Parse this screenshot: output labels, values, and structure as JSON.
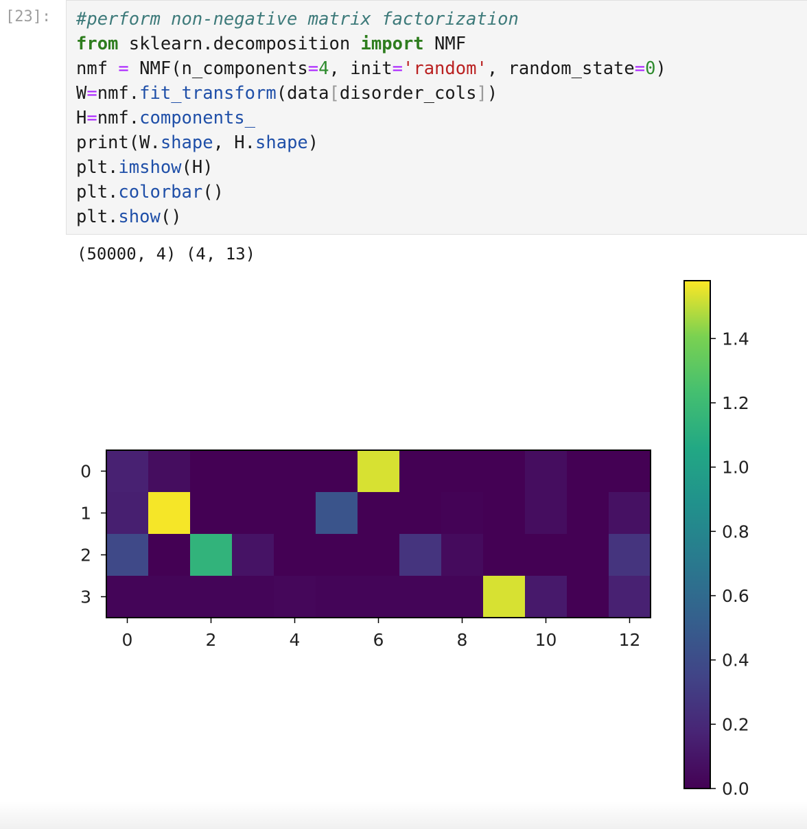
{
  "cell": {
    "prompt": "[23]:",
    "code_lines": [
      [
        {
          "t": "#perform non-negative matrix factorization",
          "c": "comment"
        }
      ],
      [
        {
          "t": "from",
          "c": "kw"
        },
        {
          "t": " sklearn.decomposition ",
          "c": ""
        },
        {
          "t": "import",
          "c": "kw"
        },
        {
          "t": " NMF",
          "c": ""
        }
      ],
      [
        {
          "t": "nmf ",
          "c": ""
        },
        {
          "t": "=",
          "c": "op"
        },
        {
          "t": " NMF(n_components",
          "c": ""
        },
        {
          "t": "=",
          "c": "op"
        },
        {
          "t": "4",
          "c": "num"
        },
        {
          "t": ", init",
          "c": ""
        },
        {
          "t": "=",
          "c": "op"
        },
        {
          "t": "'random'",
          "c": "str"
        },
        {
          "t": ", random_state",
          "c": ""
        },
        {
          "t": "=",
          "c": "op"
        },
        {
          "t": "0",
          "c": "num"
        },
        {
          "t": ")",
          "c": ""
        }
      ],
      [
        {
          "t": "W",
          "c": ""
        },
        {
          "t": "=",
          "c": "op"
        },
        {
          "t": "nmf.",
          "c": ""
        },
        {
          "t": "fit_transform",
          "c": "attr"
        },
        {
          "t": "(data",
          "c": ""
        },
        {
          "t": "[",
          "c": "brk"
        },
        {
          "t": "disorder_cols",
          "c": ""
        },
        {
          "t": "]",
          "c": "brk"
        },
        {
          "t": ")",
          "c": ""
        }
      ],
      [
        {
          "t": "H",
          "c": ""
        },
        {
          "t": "=",
          "c": "op"
        },
        {
          "t": "nmf.",
          "c": ""
        },
        {
          "t": "components_",
          "c": "attr"
        }
      ],
      [
        {
          "t": "print(W.",
          "c": ""
        },
        {
          "t": "shape",
          "c": "attr"
        },
        {
          "t": ", H.",
          "c": ""
        },
        {
          "t": "shape",
          "c": "attr"
        },
        {
          "t": ")",
          "c": ""
        }
      ],
      [
        {
          "t": "plt.",
          "c": ""
        },
        {
          "t": "imshow",
          "c": "attr"
        },
        {
          "t": "(H)",
          "c": ""
        }
      ],
      [
        {
          "t": "plt.",
          "c": ""
        },
        {
          "t": "colorbar",
          "c": "attr"
        },
        {
          "t": "()",
          "c": ""
        }
      ],
      [
        {
          "t": "plt.",
          "c": ""
        },
        {
          "t": "show",
          "c": "attr"
        },
        {
          "t": "()",
          "c": ""
        }
      ]
    ],
    "output": "(50000, 4) (4, 13)"
  },
  "chart_data": {
    "type": "heatmap",
    "colormap": "viridis",
    "rows": [
      0,
      1,
      2,
      3
    ],
    "cols": [
      0,
      1,
      2,
      3,
      4,
      5,
      6,
      7,
      8,
      9,
      10,
      11,
      12
    ],
    "values": [
      [
        0.16,
        0.06,
        0.0,
        0.0,
        0.0,
        0.0,
        1.53,
        0.0,
        0.0,
        0.0,
        0.06,
        0.0,
        0.0
      ],
      [
        0.15,
        1.57,
        0.0,
        0.0,
        0.0,
        0.45,
        0.0,
        0.0,
        0.01,
        0.0,
        0.06,
        0.0,
        0.08
      ],
      [
        0.38,
        0.0,
        1.14,
        0.09,
        0.0,
        0.0,
        0.0,
        0.26,
        0.05,
        0.0,
        0.0,
        0.0,
        0.26
      ],
      [
        0.02,
        0.02,
        0.02,
        0.02,
        0.03,
        0.02,
        0.02,
        0.02,
        0.02,
        1.53,
        0.12,
        0.0,
        0.16
      ]
    ],
    "xticks": [
      0,
      2,
      4,
      6,
      8,
      10,
      12
    ],
    "yticks": [
      0,
      1,
      2,
      3
    ],
    "colorbar": {
      "range": [
        0,
        1.58
      ],
      "ticks": [
        0.0,
        0.2,
        0.4,
        0.6,
        0.8,
        1.0,
        1.2,
        1.4
      ],
      "tick_labels": [
        "0.0",
        "0.2",
        "0.4",
        "0.6",
        "0.8",
        "1.0",
        "1.2",
        "1.4"
      ]
    }
  }
}
